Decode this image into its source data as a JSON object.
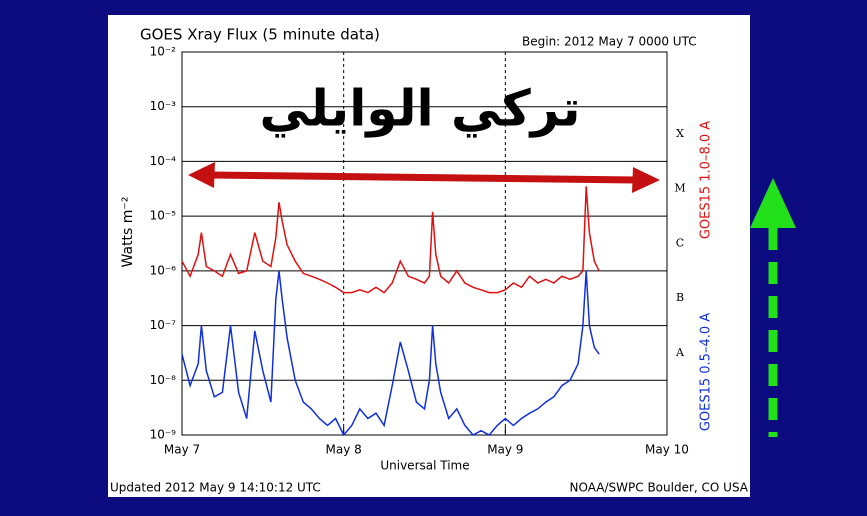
{
  "chart_data": {
    "type": "line",
    "title": "GOES Xray Flux (5 minute data)",
    "subtitle": "Begin:  2012 May 7 0000 UTC",
    "y_label": "Watts m⁻²",
    "x_label": "Universal Time",
    "footer_left": "Updated 2012 May  9 14:10:12 UTC",
    "footer_right": "NOAA/SWPC Boulder, CO USA",
    "overlay_text": "تركي الوايلي",
    "flare_classes": [
      "X",
      "M",
      "C",
      "B",
      "A"
    ],
    "x": [
      0,
      0.05,
      0.1,
      0.12,
      0.15,
      0.2,
      0.25,
      0.3,
      0.35,
      0.4,
      0.45,
      0.5,
      0.55,
      0.58,
      0.6,
      0.62,
      0.65,
      0.7,
      0.75,
      0.8,
      0.85,
      0.9,
      0.95,
      1.0,
      1.05,
      1.1,
      1.15,
      1.2,
      1.25,
      1.3,
      1.35,
      1.4,
      1.45,
      1.5,
      1.53,
      1.55,
      1.57,
      1.6,
      1.65,
      1.7,
      1.75,
      1.8,
      1.85,
      1.9,
      1.95,
      2.0,
      2.05,
      2.1,
      2.15,
      2.2,
      2.25,
      2.3,
      2.35,
      2.4,
      2.45,
      2.48,
      2.5,
      2.52,
      2.55,
      2.58
    ],
    "series": [
      {
        "name": "GOES15 1.0–8.0 A",
        "color": "#e01010",
        "values": [
          1.5e-06,
          8e-07,
          2e-06,
          5e-06,
          1.2e-06,
          1e-06,
          8e-07,
          2e-06,
          9e-07,
          1e-06,
          5e-06,
          1.5e-06,
          1.2e-06,
          4e-06,
          1.8e-05,
          8e-06,
          3e-06,
          1.5e-06,
          9e-07,
          8e-07,
          7e-07,
          6e-07,
          5e-07,
          4e-07,
          4e-07,
          4.5e-07,
          4e-07,
          5e-07,
          4e-07,
          6e-07,
          1.5e-06,
          8e-07,
          7e-07,
          6e-07,
          8e-07,
          1.2e-05,
          2e-06,
          8e-07,
          6e-07,
          1e-06,
          6e-07,
          5e-07,
          4.5e-07,
          4e-07,
          4e-07,
          4.5e-07,
          6e-07,
          5e-07,
          8e-07,
          6e-07,
          7e-07,
          6e-07,
          8e-07,
          7e-07,
          8e-07,
          1e-06,
          3.5e-05,
          5e-06,
          1.5e-06,
          1e-06
        ]
      },
      {
        "name": "GOES15 0.5–4.0 A",
        "color": "#1030e0",
        "values": [
          3e-08,
          8e-09,
          2e-08,
          1e-07,
          1.5e-08,
          5e-09,
          6e-09,
          1e-07,
          6e-09,
          2e-09,
          8e-08,
          1.5e-08,
          4e-09,
          3e-07,
          1e-06,
          3e-07,
          6e-08,
          1e-08,
          4e-09,
          3e-09,
          2e-09,
          1.5e-09,
          2e-09,
          1e-09,
          1.5e-09,
          3e-09,
          2e-09,
          2.5e-09,
          1.5e-09,
          8e-09,
          5e-08,
          1.5e-08,
          4e-09,
          3e-09,
          1e-08,
          1e-07,
          2e-08,
          6e-09,
          2e-09,
          3e-09,
          1.5e-09,
          1e-09,
          1.2e-09,
          1e-09,
          1.5e-09,
          2e-09,
          1.5e-09,
          2e-09,
          2.5e-09,
          3e-09,
          4e-09,
          5e-09,
          8e-09,
          1e-08,
          2e-08,
          1e-07,
          1e-06,
          1e-07,
          4e-08,
          3e-08
        ]
      }
    ],
    "xlim": [
      0,
      3
    ],
    "xticks": [
      {
        "value": 0,
        "label": "May 7"
      },
      {
        "value": 1,
        "label": "May 8"
      },
      {
        "value": 2,
        "label": "May 9"
      },
      {
        "value": 3,
        "label": "May 10"
      }
    ],
    "ylim": [
      1e-09,
      0.01
    ],
    "yscale": "log",
    "yticks": [
      {
        "value": 1e-09,
        "label": "10⁻⁹"
      },
      {
        "value": 1e-08,
        "label": "10⁻⁸"
      },
      {
        "value": 1e-07,
        "label": "10⁻⁷"
      },
      {
        "value": 1e-06,
        "label": "10⁻⁶"
      },
      {
        "value": 1e-05,
        "label": "10⁻⁵"
      },
      {
        "value": 0.0001,
        "label": "10⁻⁴"
      },
      {
        "value": 0.001,
        "label": "10⁻³"
      },
      {
        "value": 0.01,
        "label": "10⁻²"
      }
    ],
    "grid": true,
    "xgrid": true
  }
}
